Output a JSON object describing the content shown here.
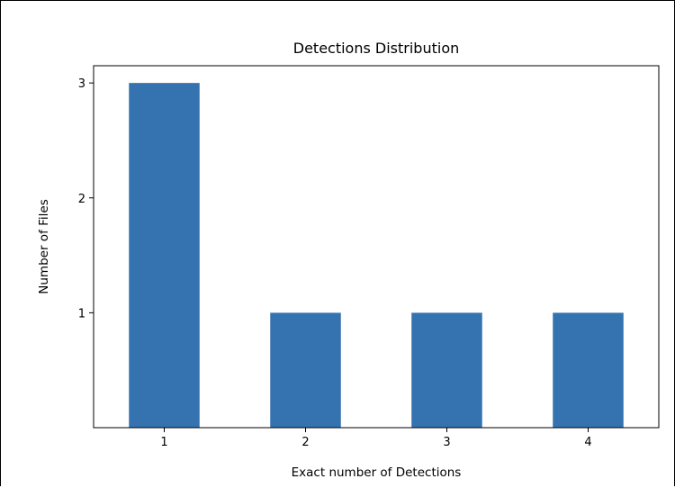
{
  "chart_data": {
    "type": "bar",
    "title": "Detections Distribution",
    "xlabel": "Exact number of Detections",
    "ylabel": "Number of Files",
    "categories": [
      "1",
      "2",
      "3",
      "4"
    ],
    "values": [
      3,
      1,
      1,
      1
    ],
    "yticks": [
      1,
      2,
      3
    ],
    "ylim": [
      0,
      3.15
    ],
    "bar_color": "#3572b0",
    "grid": false,
    "legend": "none"
  }
}
